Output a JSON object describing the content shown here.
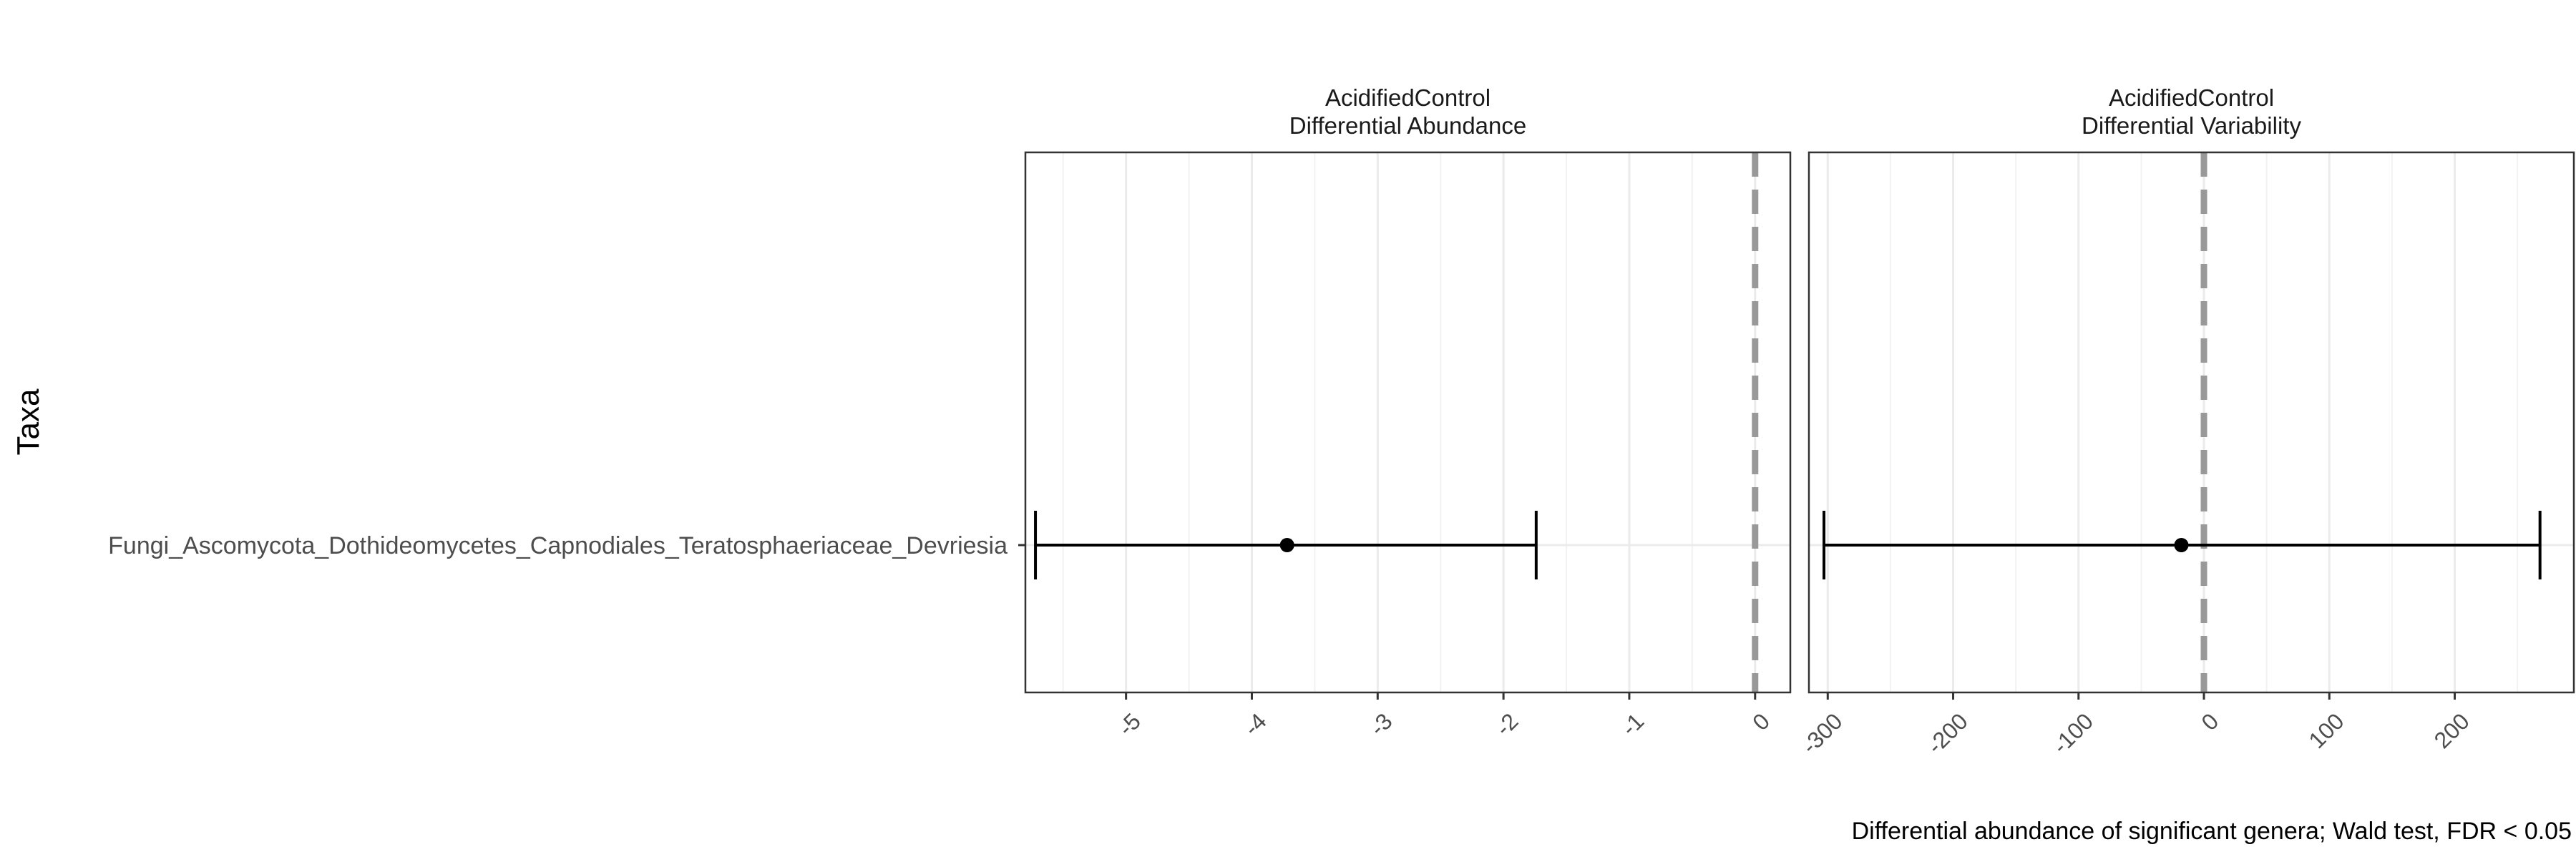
{
  "chart_data": {
    "type": "forest",
    "ylabel": "Taxa",
    "xlabel": "Differential abundance of significant genera; Wald test, FDR < 0.05",
    "categories": [
      "Fungi_Ascomycota_Dothideomycetes_Capnodiales_Teratosphaeriaceae_Devriesia"
    ],
    "reference_line": 0,
    "grid": true,
    "panels": [
      {
        "title_line1": "AcidifiedControl",
        "title_line2": "Differential Abundance",
        "xlim": [
          -5.8,
          0.28
        ],
        "ticks": [
          -5,
          -4,
          -3,
          -2,
          -1,
          0
        ],
        "tick_labels": [
          "-5",
          "-4",
          "-3",
          "-2",
          "-1",
          "0"
        ],
        "estimate": -3.72,
        "lower": -5.72,
        "upper": -1.74
      },
      {
        "title_line1": "AcidifiedControl",
        "title_line2": "Differential Variability",
        "xlim": [
          -315,
          295
        ],
        "ticks": [
          -300,
          -200,
          -100,
          0,
          100,
          200
        ],
        "tick_labels": [
          "-300",
          "-200",
          "-100",
          "0",
          "100",
          "200"
        ],
        "estimate": -18,
        "lower": -303,
        "upper": 268
      }
    ]
  }
}
